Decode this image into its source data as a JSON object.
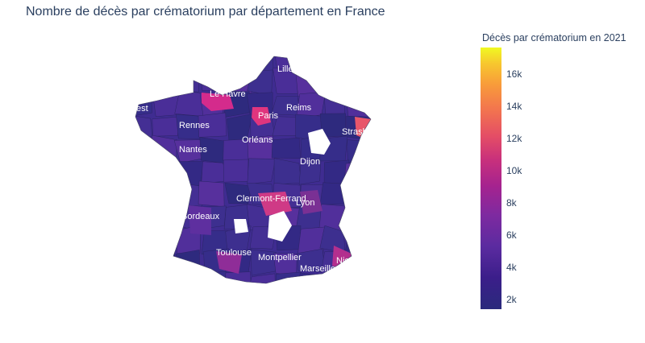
{
  "title": "Nombre de décès par crématorium par département en France",
  "colorbar": {
    "title": "Décès par crématorium en 2021",
    "ticks": [
      "2k",
      "4k",
      "6k",
      "8k",
      "10k",
      "12k",
      "14k",
      "16k"
    ],
    "range": [
      1400,
      17500
    ],
    "colors": [
      "#2a2a7c",
      "#5b2ba0",
      "#a5238f",
      "#e44d66",
      "#f89c3a",
      "#f0f921"
    ]
  },
  "cities": [
    "Lille",
    "Le Havre",
    "Brest",
    "Paris",
    "Reims",
    "Rennes",
    "Strasbourg",
    "Orléans",
    "Nantes",
    "Dijon",
    "Clermont-Ferrand",
    "Lyon",
    "Bordeaux",
    "Toulouse",
    "Montpellier",
    "Marseille",
    "Nice"
  ],
  "highlights": {
    "le_havre": "#d42b8c",
    "paris": "#e0357e",
    "strasbourg": "#e8566a",
    "clermont": "#cf3a86",
    "nice": "#b32f8e",
    "toulouse": "#8f2d98"
  },
  "base_colors": [
    "#362d8a",
    "#3d2f8f",
    "#442f94",
    "#4a2e98",
    "#512f9b",
    "#332985",
    "#2e2a7e",
    "#57309d"
  ]
}
